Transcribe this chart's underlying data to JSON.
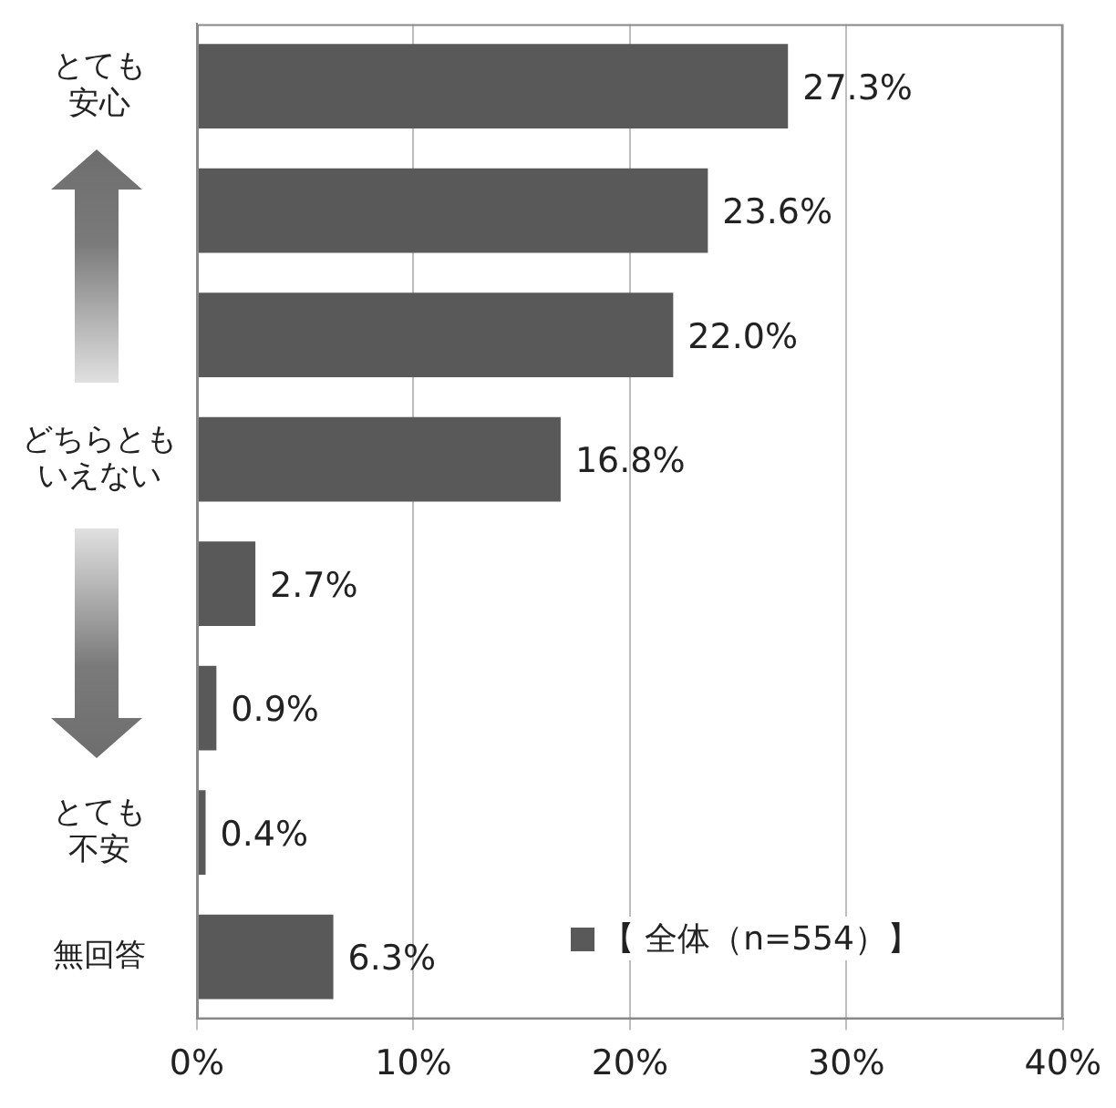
{
  "chart_data": {
    "type": "bar",
    "orientation": "horizontal",
    "categories": [
      "とても安心",
      null,
      null,
      "どちらともいえない",
      null,
      null,
      "とても不安",
      "無回答"
    ],
    "series": [
      {
        "name": "【 全体（n=554）】",
        "color": "#595959",
        "values": [
          27.3,
          23.6,
          22.0,
          16.8,
          2.7,
          0.9,
          0.4,
          6.3
        ],
        "value_labels": [
          "27.3%",
          "23.6%",
          "22.0%",
          "16.8%",
          "2.7%",
          "0.9%",
          "0.4%",
          "6.3%"
        ]
      }
    ],
    "xlim": [
      0,
      40
    ],
    "xticks": [
      {
        "value": 0,
        "label": "0%"
      },
      {
        "value": 10,
        "label": "10%"
      },
      {
        "value": 20,
        "label": "20%"
      },
      {
        "value": 30,
        "label": "30%"
      },
      {
        "value": 40,
        "label": "40%"
      }
    ],
    "grid": "x",
    "legend": "bottom right"
  }
}
